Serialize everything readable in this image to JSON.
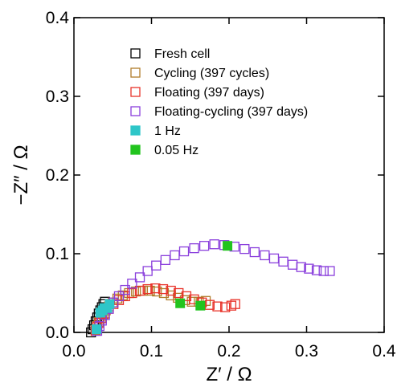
{
  "chart_data": {
    "type": "scatter",
    "title": "",
    "xlabel": "Z′ / Ω",
    "ylabel": "−Z″ / Ω",
    "xlim": [
      0.0,
      0.4
    ],
    "ylim": [
      0.0,
      0.4
    ],
    "xticks": [
      "0.0",
      "0.1",
      "0.2",
      "0.3",
      "0.4"
    ],
    "yticks": [
      "0.0",
      "0.1",
      "0.2",
      "0.3",
      "0.4"
    ],
    "grid": false,
    "legend_position": "top-right",
    "series": [
      {
        "name": "Fresh cell",
        "marker": "open-square",
        "color": "#000000",
        "points": [
          [
            0.022,
            0.0
          ],
          [
            0.024,
            0.004
          ],
          [
            0.026,
            0.009
          ],
          [
            0.028,
            0.014
          ],
          [
            0.03,
            0.019
          ],
          [
            0.032,
            0.024
          ],
          [
            0.034,
            0.028
          ],
          [
            0.036,
            0.032
          ],
          [
            0.038,
            0.036
          ],
          [
            0.04,
            0.039
          ]
        ]
      },
      {
        "name": "Cycling (397 cycles)",
        "marker": "open-square",
        "color": "#b07d2b",
        "points": [
          [
            0.028,
            0.003
          ],
          [
            0.03,
            0.008
          ],
          [
            0.032,
            0.013
          ],
          [
            0.035,
            0.018
          ],
          [
            0.038,
            0.023
          ],
          [
            0.041,
            0.028
          ],
          [
            0.045,
            0.033
          ],
          [
            0.05,
            0.038
          ],
          [
            0.056,
            0.043
          ],
          [
            0.063,
            0.047
          ],
          [
            0.071,
            0.05
          ],
          [
            0.08,
            0.052
          ],
          [
            0.089,
            0.053
          ],
          [
            0.098,
            0.053
          ],
          [
            0.107,
            0.052
          ],
          [
            0.116,
            0.05
          ],
          [
            0.125,
            0.047
          ],
          [
            0.134,
            0.044
          ],
          [
            0.143,
            0.041
          ],
          [
            0.152,
            0.039
          ],
          [
            0.161,
            0.039
          ],
          [
            0.17,
            0.04
          ]
        ]
      },
      {
        "name": "Floating (397 days)",
        "marker": "open-square",
        "color": "#e8332a",
        "points": [
          [
            0.028,
            0.002
          ],
          [
            0.03,
            0.007
          ],
          [
            0.033,
            0.012
          ],
          [
            0.036,
            0.018
          ],
          [
            0.04,
            0.024
          ],
          [
            0.045,
            0.03
          ],
          [
            0.051,
            0.036
          ],
          [
            0.058,
            0.041
          ],
          [
            0.066,
            0.046
          ],
          [
            0.075,
            0.05
          ],
          [
            0.085,
            0.053
          ],
          [
            0.095,
            0.055
          ],
          [
            0.105,
            0.056
          ],
          [
            0.115,
            0.055
          ],
          [
            0.125,
            0.053
          ],
          [
            0.135,
            0.05
          ],
          [
            0.145,
            0.046
          ],
          [
            0.155,
            0.042
          ],
          [
            0.165,
            0.038
          ],
          [
            0.175,
            0.035
          ],
          [
            0.185,
            0.033
          ],
          [
            0.195,
            0.032
          ],
          [
            0.203,
            0.034
          ],
          [
            0.208,
            0.036
          ]
        ]
      },
      {
        "name": "Floating-cycling  (397 days)",
        "marker": "open-square",
        "color": "#8a3fdc",
        "points": [
          [
            0.03,
            0.002
          ],
          [
            0.033,
            0.008
          ],
          [
            0.036,
            0.015
          ],
          [
            0.04,
            0.022
          ],
          [
            0.045,
            0.03
          ],
          [
            0.051,
            0.038
          ],
          [
            0.058,
            0.046
          ],
          [
            0.066,
            0.054
          ],
          [
            0.075,
            0.062
          ],
          [
            0.085,
            0.07
          ],
          [
            0.095,
            0.078
          ],
          [
            0.106,
            0.085
          ],
          [
            0.118,
            0.092
          ],
          [
            0.13,
            0.098
          ],
          [
            0.142,
            0.103
          ],
          [
            0.155,
            0.107
          ],
          [
            0.168,
            0.11
          ],
          [
            0.181,
            0.112
          ],
          [
            0.194,
            0.111
          ],
          [
            0.207,
            0.109
          ],
          [
            0.22,
            0.106
          ],
          [
            0.233,
            0.102
          ],
          [
            0.246,
            0.098
          ],
          [
            0.258,
            0.094
          ],
          [
            0.27,
            0.09
          ],
          [
            0.282,
            0.086
          ],
          [
            0.293,
            0.083
          ],
          [
            0.303,
            0.081
          ],
          [
            0.313,
            0.079
          ],
          [
            0.322,
            0.078
          ],
          [
            0.33,
            0.078
          ]
        ]
      }
    ],
    "markers": [
      {
        "name": "1 Hz",
        "marker": "filled-square",
        "color": "#2ec6c8",
        "points": [
          [
            0.029,
            0.004
          ],
          [
            0.034,
            0.025
          ],
          [
            0.037,
            0.028
          ],
          [
            0.039,
            0.031
          ],
          [
            0.043,
            0.031
          ],
          [
            0.046,
            0.036
          ]
        ]
      },
      {
        "name": "0.05 Hz",
        "marker": "filled-square",
        "color": "#22c41e",
        "points": [
          [
            0.137,
            0.037
          ],
          [
            0.163,
            0.034
          ],
          [
            0.198,
            0.11
          ]
        ]
      }
    ]
  }
}
